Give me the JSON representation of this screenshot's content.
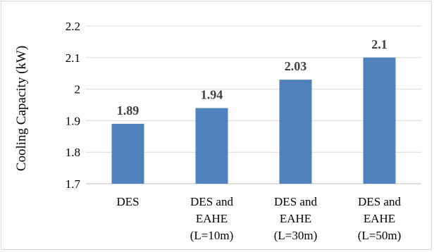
{
  "chart_data": {
    "type": "bar",
    "title": "",
    "xlabel": "",
    "ylabel": "Cooling Capacity (kW)",
    "ylim": [
      1.7,
      2.2
    ],
    "yticks": [
      "1.7",
      "1.8",
      "1.9",
      "2",
      "2.1",
      "2.2"
    ],
    "grid": true,
    "legend": "none",
    "bar_color": "#4F81BD",
    "categories": [
      [
        "DES"
      ],
      [
        "DES and",
        "EAHE",
        "(L=10m)"
      ],
      [
        "DES and",
        "EAHE",
        "(L=30m)"
      ],
      [
        "DES and",
        "EAHE",
        "(L=50m)"
      ]
    ],
    "values": [
      1.89,
      1.94,
      2.03,
      2.1
    ],
    "data_labels": [
      "1.89",
      "1.94",
      "2.03",
      "2.1"
    ]
  }
}
